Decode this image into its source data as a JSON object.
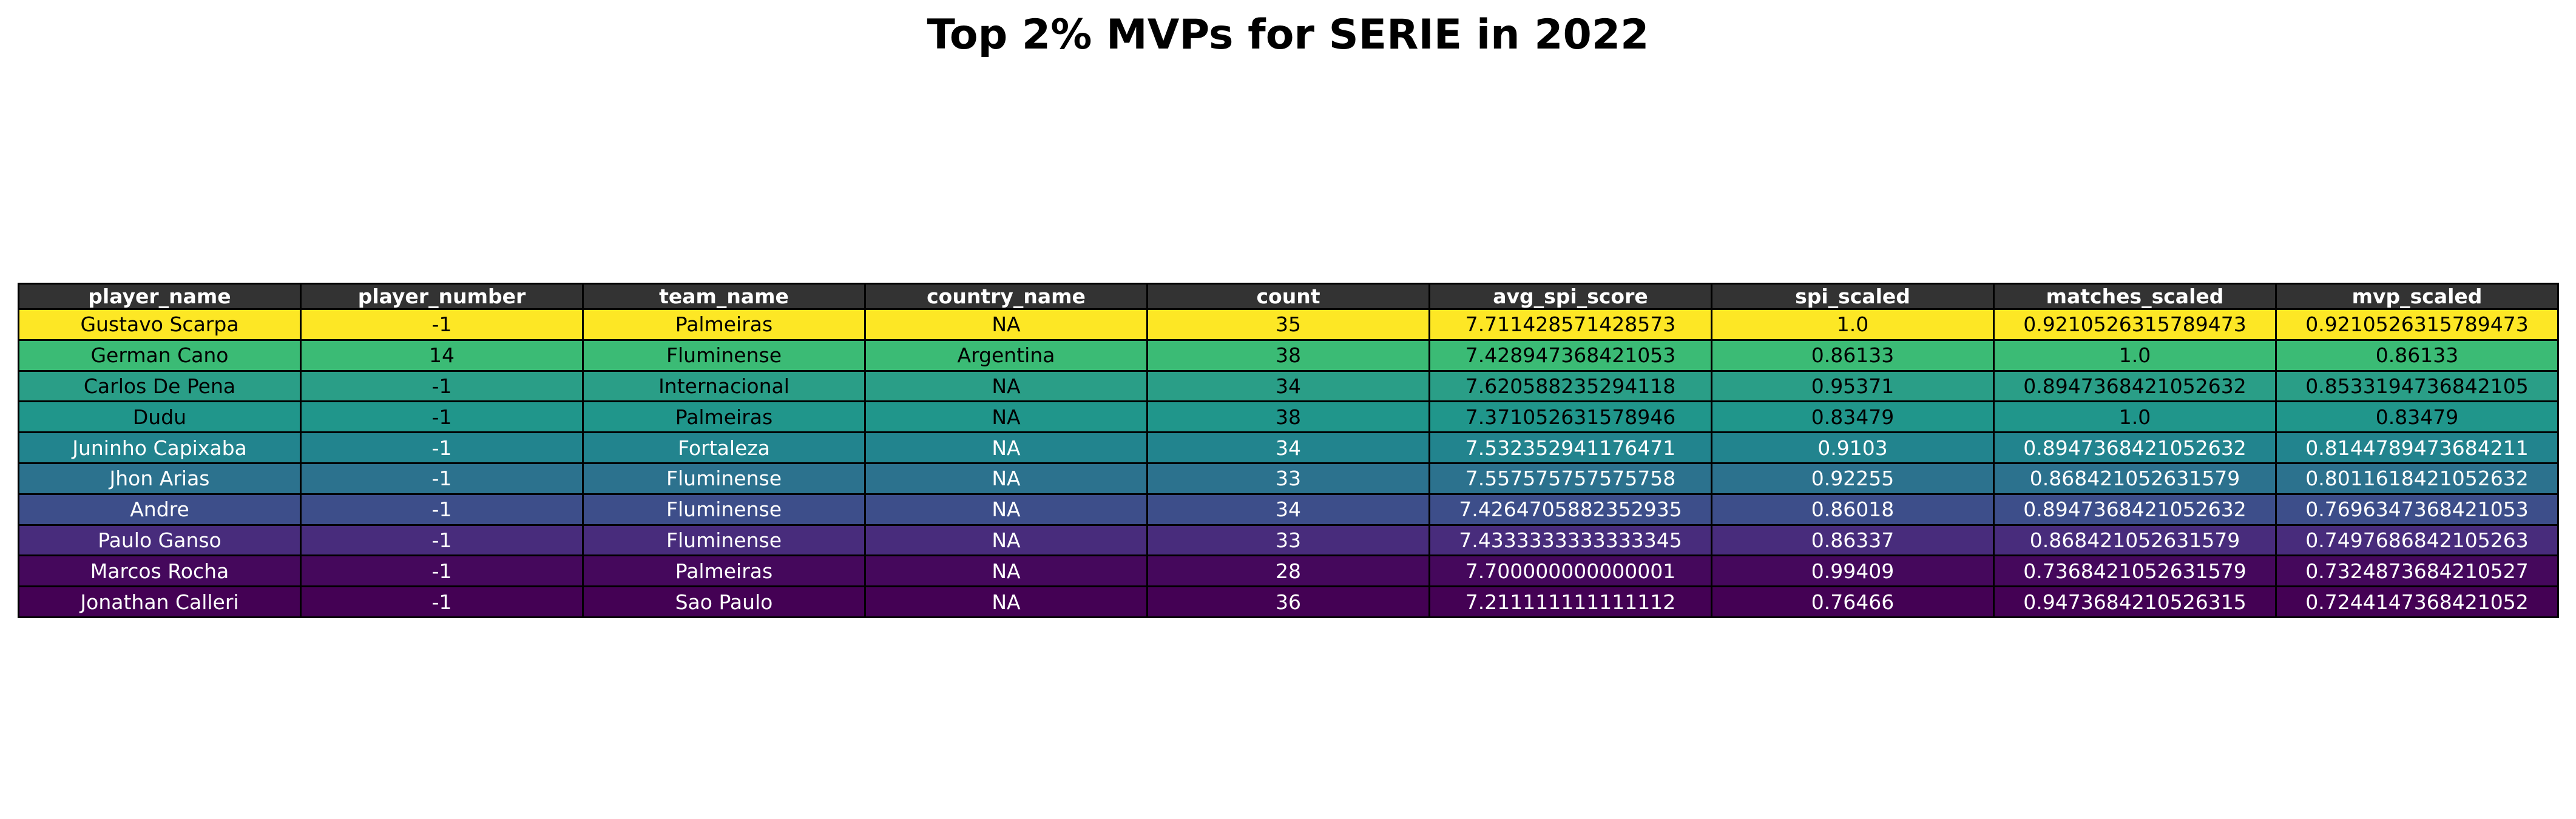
{
  "chart_data": {
    "type": "table",
    "title": "Top 2% MVPs for SERIE in 2022",
    "columns": [
      "player_name",
      "player_number",
      "team_name",
      "country_name",
      "count",
      "avg_spi_score",
      "spi_scaled",
      "matches_scaled",
      "mvp_scaled"
    ],
    "rows": [
      [
        "Gustavo Scarpa",
        "-1",
        "Palmeiras",
        "NA",
        "35",
        "7.711428571428573",
        "1.0",
        "0.9210526315789473",
        "0.9210526315789473"
      ],
      [
        "German Cano",
        "14",
        "Fluminense",
        "Argentina",
        "38",
        "7.428947368421053",
        "0.86133",
        "1.0",
        "0.86133"
      ],
      [
        "Carlos De Pena",
        "-1",
        "Internacional",
        "NA",
        "34",
        "7.620588235294118",
        "0.95371",
        "0.8947368421052632",
        "0.8533194736842105"
      ],
      [
        "Dudu",
        "-1",
        "Palmeiras",
        "NA",
        "38",
        "7.371052631578946",
        "0.83479",
        "1.0",
        "0.83479"
      ],
      [
        "Juninho Capixaba",
        "-1",
        "Fortaleza",
        "NA",
        "34",
        "7.532352941176471",
        "0.9103",
        "0.8947368421052632",
        "0.8144789473684211"
      ],
      [
        "Jhon Arias",
        "-1",
        "Fluminense",
        "NA",
        "33",
        "7.557575757575758",
        "0.92255",
        "0.868421052631579",
        "0.8011618421052632"
      ],
      [
        "Andre",
        "-1",
        "Fluminense",
        "NA",
        "34",
        "7.4264705882352935",
        "0.86018",
        "0.8947368421052632",
        "0.7696347368421053"
      ],
      [
        "Paulo Ganso",
        "-1",
        "Fluminense",
        "NA",
        "33",
        "7.4333333333333345",
        "0.86337",
        "0.868421052631579",
        "0.7497686842105263"
      ],
      [
        "Marcos Rocha",
        "-1",
        "Palmeiras",
        "NA",
        "28",
        "7.700000000000001",
        "0.99409",
        "0.7368421052631579",
        "0.7324873684210527"
      ],
      [
        "Jonathan Calleri",
        "-1",
        "Sao Paulo",
        "NA",
        "36",
        "7.211111111111112",
        "0.76466",
        "0.9473684210526315",
        "0.7244147368421052"
      ]
    ],
    "header_color": "#333333",
    "header_text_color": "#ffffff",
    "row_colors": [
      "#fde725",
      "#3bbb75",
      "#2a9e87",
      "#20968b",
      "#22848e",
      "#2c728e",
      "#3d4e8a",
      "#482c7c",
      "#45085c",
      "#440154"
    ],
    "row_text_colors": [
      "#000000",
      "#000000",
      "#000000",
      "#000000",
      "#ffffff",
      "#ffffff",
      "#ffffff",
      "#ffffff",
      "#ffffff",
      "#ffffff"
    ]
  }
}
